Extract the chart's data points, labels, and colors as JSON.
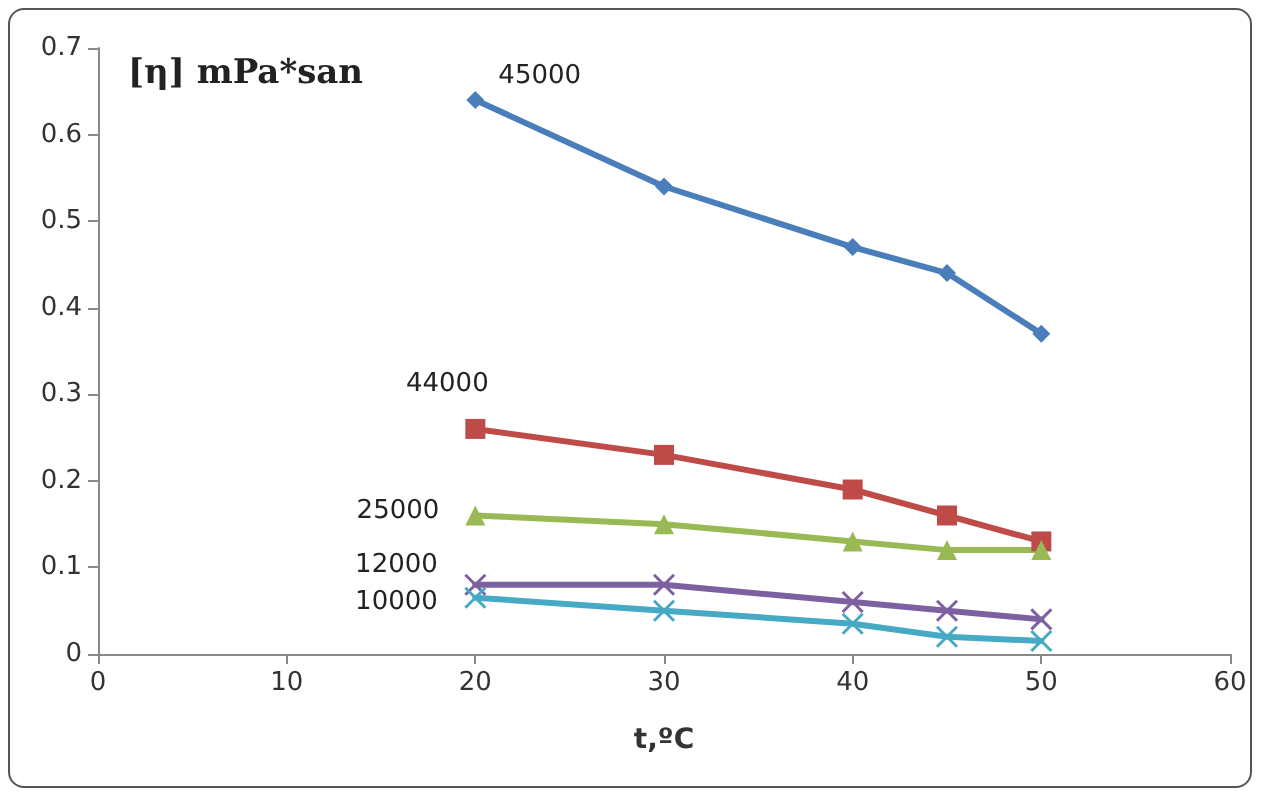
{
  "chart_data": {
    "type": "line",
    "xlabel": "t,ºC",
    "ylabel": "[η] mPa*san",
    "x": [
      20,
      30,
      40,
      45,
      50
    ],
    "series": [
      {
        "name": "45000",
        "color": "#4a7ebb",
        "marker": "diamond",
        "values": [
          0.64,
          0.54,
          0.47,
          0.44,
          0.37
        ]
      },
      {
        "name": "44000",
        "color": "#be4b48",
        "marker": "square",
        "values": [
          0.26,
          0.23,
          0.19,
          0.16,
          0.13
        ]
      },
      {
        "name": "25000",
        "color": "#98b954",
        "marker": "triangle",
        "values": [
          0.16,
          0.15,
          0.13,
          0.12,
          0.12
        ]
      },
      {
        "name": "12000",
        "color": "#7d60a0",
        "marker": "cross",
        "values": [
          0.08,
          0.08,
          0.06,
          0.05,
          0.04
        ]
      },
      {
        "name": "10000",
        "color": "#46aac5",
        "marker": "cross",
        "values": [
          0.065,
          0.05,
          0.035,
          0.02,
          0.015
        ]
      }
    ],
    "xlim": [
      0,
      60
    ],
    "xticks": [
      0,
      10,
      20,
      30,
      40,
      50,
      60
    ],
    "ylim": [
      0,
      0.7
    ],
    "yticks": [
      0,
      0.1,
      0.2,
      0.3,
      0.4,
      0.5,
      0.6,
      0.7
    ],
    "grid": false,
    "legend": false,
    "line_style": "solid"
  }
}
